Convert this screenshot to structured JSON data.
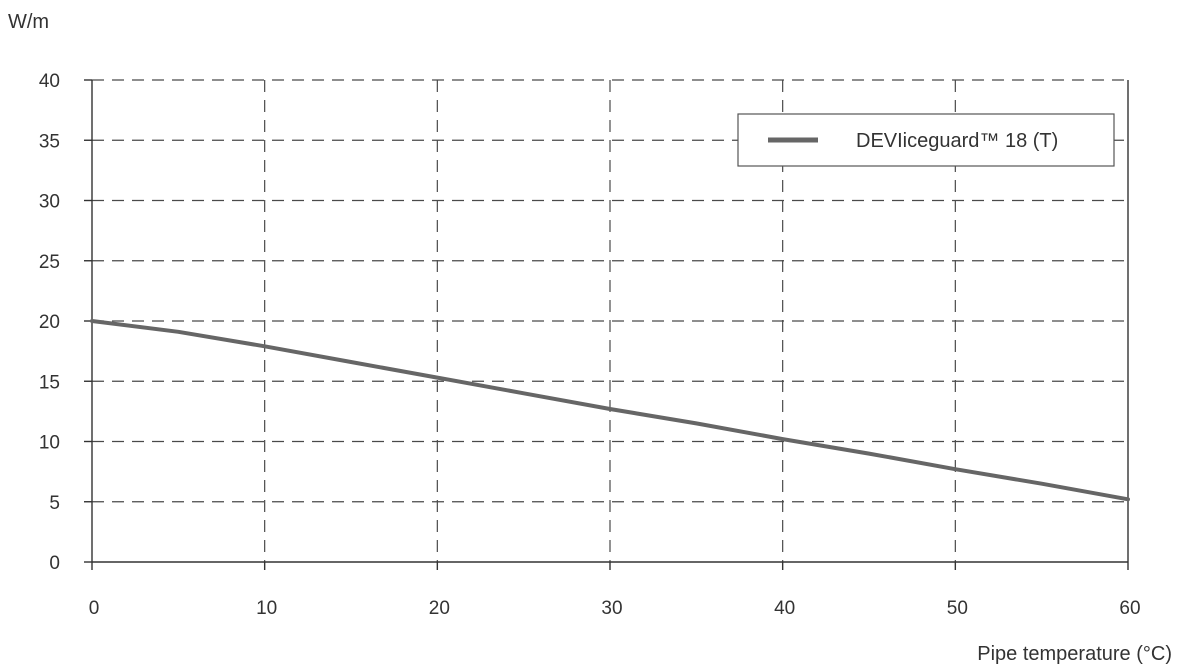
{
  "chart_data": {
    "type": "line",
    "ylabel": "W/m",
    "xlabel": "Pipe temperature (°C)",
    "xlim": [
      0,
      60
    ],
    "ylim": [
      0,
      40
    ],
    "x_ticks": [
      0,
      10,
      20,
      30,
      40,
      50,
      60
    ],
    "y_ticks": [
      0,
      5,
      10,
      15,
      20,
      25,
      30,
      35,
      40
    ],
    "grid": true,
    "legend_position": "top-right",
    "series": [
      {
        "name": "DEVIiceguard™ 18 (T)",
        "color": "#666666",
        "x": [
          0,
          5,
          10,
          15,
          20,
          25,
          30,
          35,
          40,
          45,
          50,
          55,
          60
        ],
        "y": [
          20,
          19.1,
          17.9,
          16.6,
          15.3,
          14.0,
          12.7,
          11.5,
          10.2,
          9.0,
          7.7,
          6.5,
          5.2
        ]
      }
    ]
  }
}
